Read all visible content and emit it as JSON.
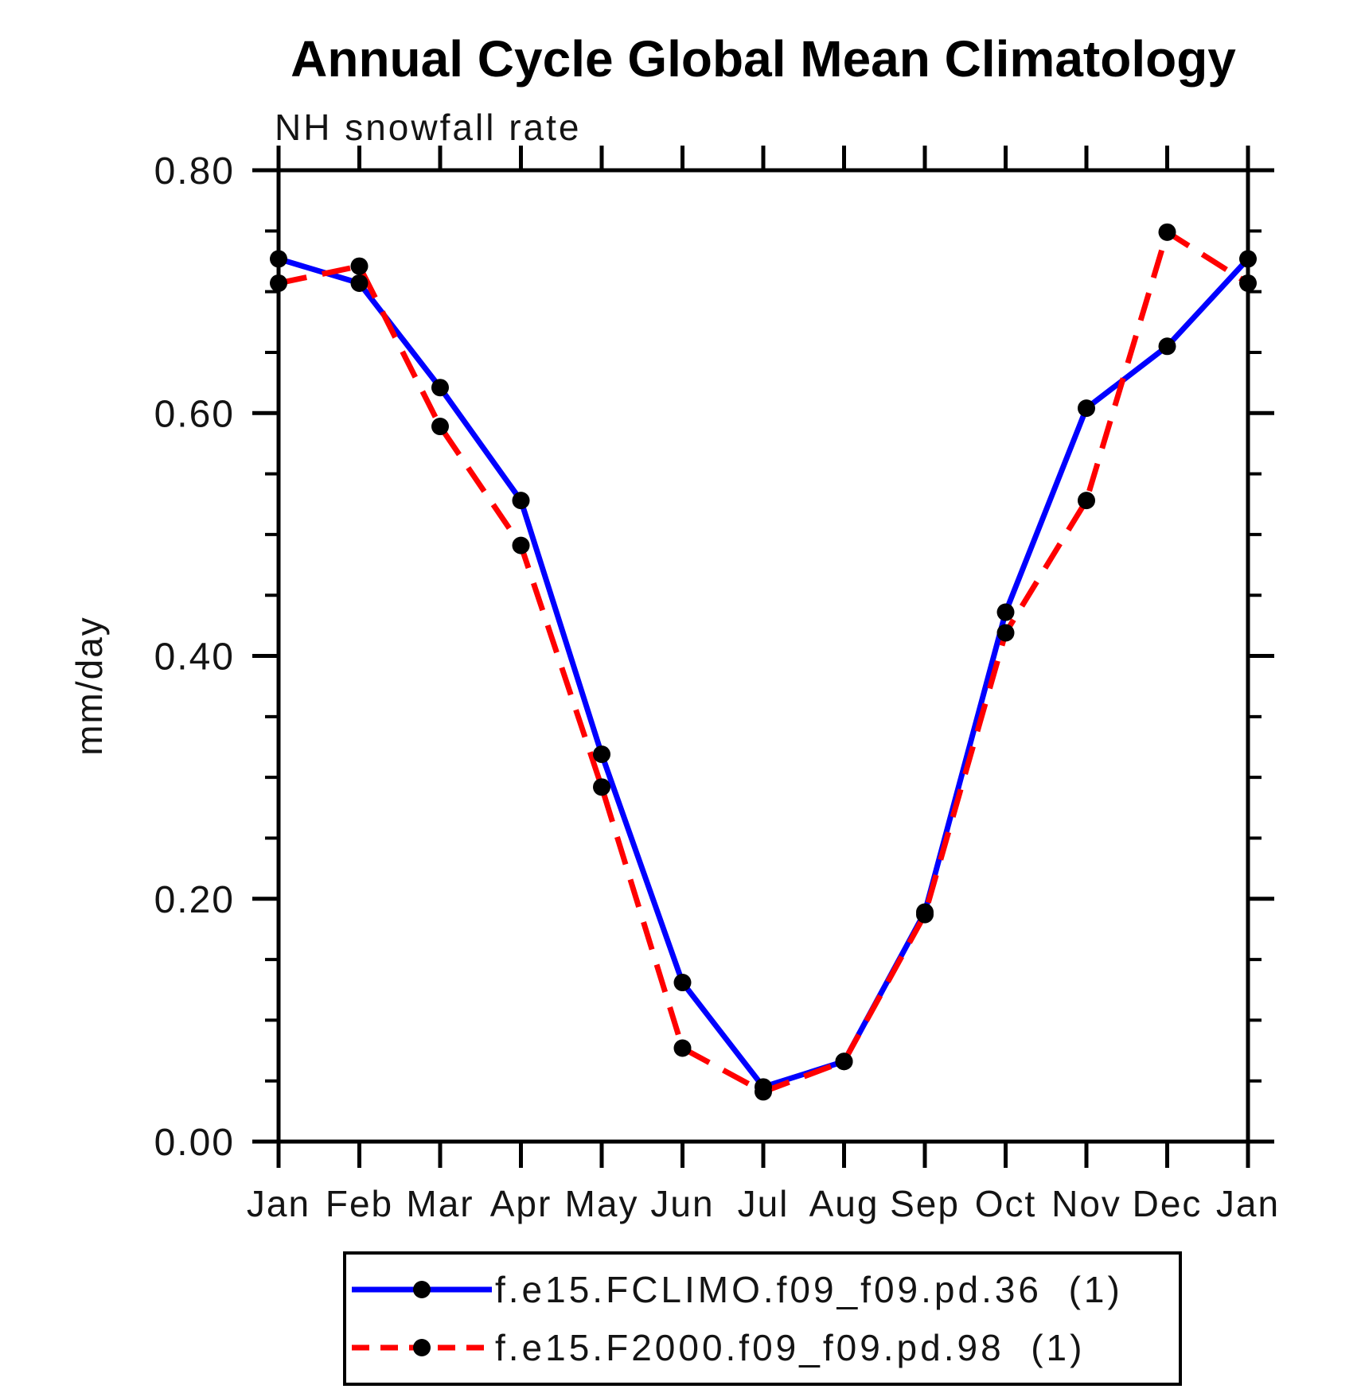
{
  "page": {
    "background": "#ffffff",
    "frame_color": "#000000"
  },
  "chart_data": {
    "type": "line",
    "title": "Annual Cycle Global Mean Climatology",
    "subtitle": "NH snowfall rate",
    "xlabel": "",
    "ylabel": "mm/day",
    "x_categories": [
      "Jan",
      "Feb",
      "Mar",
      "Apr",
      "May",
      "Jun",
      "Jul",
      "Aug",
      "Sep",
      "Oct",
      "Nov",
      "Dec",
      "Jan"
    ],
    "ylim": [
      0.0,
      0.8
    ],
    "y_major_ticks": [
      0.0,
      0.2,
      0.4,
      0.6,
      0.8
    ],
    "y_major_tick_labels": [
      "0.00",
      "0.20",
      "0.40",
      "0.60",
      "0.80"
    ],
    "y_minor_tick_step": 0.05,
    "grid": false,
    "legend_position": "bottom",
    "marker": {
      "shape": "circle",
      "color": "#000000"
    },
    "series": [
      {
        "name": "f.e15.FCLIMO.f09_f09.pd.36  (1)",
        "color": "#0000ff",
        "line_style": "solid",
        "values": [
          0.727,
          0.707,
          0.621,
          0.528,
          0.319,
          0.131,
          0.045,
          0.066,
          0.189,
          0.436,
          0.604,
          0.655,
          0.727
        ]
      },
      {
        "name": "f.e15.F2000.f09_f09.pd.98  (1)",
        "color": "#ff0000",
        "line_style": "dashed",
        "values": [
          0.707,
          0.721,
          0.589,
          0.491,
          0.292,
          0.077,
          0.041,
          0.066,
          0.187,
          0.419,
          0.528,
          0.749,
          0.707
        ]
      }
    ]
  }
}
